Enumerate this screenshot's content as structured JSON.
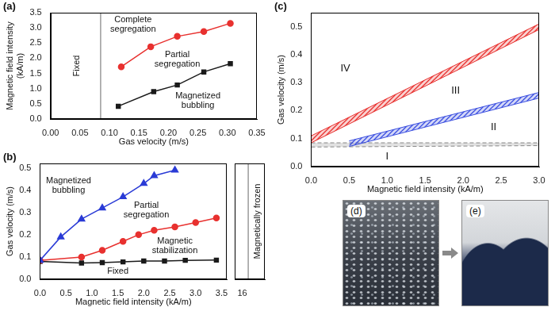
{
  "chart_data": [
    {
      "type": "line",
      "label": "(a)",
      "xlabel": "Gas velocity (m/s)",
      "ylabel": "Magnetic field intensity (kA/m)",
      "xlim": [
        0,
        0.35
      ],
      "xticks": [
        {
          "value": 0,
          "label": "0.00"
        },
        0.05,
        {
          "value": 0.1,
          "label": "0.10"
        },
        0.15,
        {
          "value": 0.2,
          "label": "0.20"
        },
        0.25,
        {
          "value": 0.3,
          "label": "0.30"
        },
        0.35
      ],
      "ylim": [
        0,
        3.5
      ],
      "yticks": [
        {
          "value": 0,
          "label": "0.0"
        },
        0.5,
        {
          "value": 1,
          "label": "1.0"
        },
        1.5,
        {
          "value": 2,
          "label": "2.0"
        },
        2.5,
        {
          "value": 3,
          "label": "3.0"
        },
        3.5
      ],
      "grid": false,
      "series": [
        {
          "color": "#e8312f",
          "marker": "circle",
          "x": [
            0.12,
            0.17,
            0.215,
            0.26,
            0.305
          ],
          "values": [
            1.72,
            2.38,
            2.72,
            2.88,
            3.15
          ]
        },
        {
          "color": "#1a1a1a",
          "marker": "square",
          "x": [
            0.115,
            0.175,
            0.215,
            0.26,
            0.305
          ],
          "values": [
            0.42,
            0.9,
            1.12,
            1.55,
            1.82
          ]
        }
      ],
      "vlines": [
        0.085
      ],
      "annotations": [
        {
          "text": "Fixed",
          "x": 0.045,
          "y": 1.75
        },
        {
          "text": "Complete segregation",
          "x": 0.14,
          "y": 3.1
        },
        {
          "text": "Partial segregation",
          "x": 0.215,
          "y": 1.95
        },
        {
          "text": "Magnetized bubbling",
          "x": 0.25,
          "y": 0.6
        }
      ]
    },
    {
      "type": "line",
      "label": "(b)",
      "xlabel": "Magnetic field intensity (kA/m)",
      "ylabel": "Gas velocity (m/s)",
      "xlim": [
        0,
        3.6
      ],
      "xticks": [
        {
          "value": 0,
          "label": "0.0"
        },
        0.5,
        {
          "value": 1,
          "label": "1.0"
        },
        1.5,
        {
          "value": 2,
          "label": "2.0"
        },
        2.5,
        {
          "value": 3,
          "label": "3.0"
        },
        3.5
      ],
      "ylim": [
        0,
        0.52
      ],
      "yticks": [
        {
          "value": 0,
          "label": "0.0"
        },
        0.1,
        0.2,
        0.3,
        0.4,
        0.5
      ],
      "grid": false,
      "series": [
        {
          "color": "#2a3bd6",
          "marker": "triangle",
          "x": [
            0,
            0.4,
            0.8,
            1.2,
            1.6,
            2.0,
            2.2,
            2.6
          ],
          "values": [
            0.085,
            0.19,
            0.27,
            0.32,
            0.37,
            0.43,
            0.465,
            0.49
          ]
        },
        {
          "color": "#e8312f",
          "marker": "circle",
          "x": [
            0,
            0.8,
            1.2,
            1.6,
            1.9,
            2.2,
            2.6,
            3.0,
            3.4
          ],
          "values": [
            0.085,
            0.1,
            0.13,
            0.17,
            0.2,
            0.22,
            0.235,
            0.255,
            0.275
          ]
        },
        {
          "color": "#1a1a1a",
          "marker": "square",
          "x": [
            0,
            0.8,
            1.2,
            1.6,
            2.0,
            2.4,
            2.8,
            3.4
          ],
          "values": [
            0.08,
            0.073,
            0.075,
            0.078,
            0.082,
            0.082,
            0.085,
            0.086
          ]
        }
      ],
      "annotations": [
        {
          "text": "Magnetized bubbling",
          "x": 0.55,
          "y": 0.42
        },
        {
          "text": "Partial segregation",
          "x": 2.05,
          "y": 0.31
        },
        {
          "text": "Magnetic stabilization",
          "x": 2.6,
          "y": 0.15
        },
        {
          "text": "Fixed",
          "x": 1.5,
          "y": 0.035
        }
      ]
    },
    {
      "type": "line",
      "xlim": [
        15.5,
        17.5
      ],
      "xticks": [
        16
      ],
      "ylim": [
        0,
        0.52
      ],
      "grid": false,
      "tick_labels": "x",
      "vlines": [
        16.4
      ],
      "annotations": [
        {
          "text": "Magnetically frozen",
          "x": 17.0,
          "y": 0.26
        }
      ]
    },
    {
      "type": "area",
      "label": "(c)",
      "xlabel": "Magnetic field intensity (kA/m)",
      "ylabel": "Gas velocity (m/s)",
      "xlim": [
        0,
        3
      ],
      "xticks": [
        {
          "value": 0,
          "label": "0.0"
        },
        0.5,
        {
          "value": 1,
          "label": "1.0"
        },
        1.5,
        {
          "value": 2,
          "label": "2.0"
        },
        2.5,
        {
          "value": 3,
          "label": "3.0"
        }
      ],
      "ylim": [
        0,
        0.55
      ],
      "yticks": [
        {
          "value": 0,
          "label": "0.0"
        },
        0.1,
        0.2,
        0.3,
        0.4,
        0.5
      ],
      "grid": false,
      "series": [
        {
          "color": "#e8312f",
          "x": [
            0,
            3
          ],
          "lower": [
            0.085,
            0.49
          ],
          "upper": [
            0.11,
            0.51
          ]
        },
        {
          "color": "#3b4fe0",
          "x": [
            0.5,
            3
          ],
          "lower": [
            0.072,
            0.245
          ],
          "upper": [
            0.092,
            0.265
          ]
        },
        {
          "color": "#888888",
          "line_style": "dashed",
          "x": [
            0,
            3
          ],
          "lower": [
            0.07,
            0.075
          ],
          "upper": [
            0.085,
            0.085
          ]
        }
      ],
      "annotations": [
        {
          "text": "IV",
          "x": 0.45,
          "y": 0.35
        },
        {
          "text": "III",
          "x": 1.9,
          "y": 0.27
        },
        {
          "text": "II",
          "x": 2.4,
          "y": 0.14
        },
        {
          "text": "I",
          "x": 1.0,
          "y": 0.035
        }
      ]
    }
  ],
  "images": [
    {
      "label": "(d)"
    },
    {
      "label": "(e)"
    }
  ]
}
